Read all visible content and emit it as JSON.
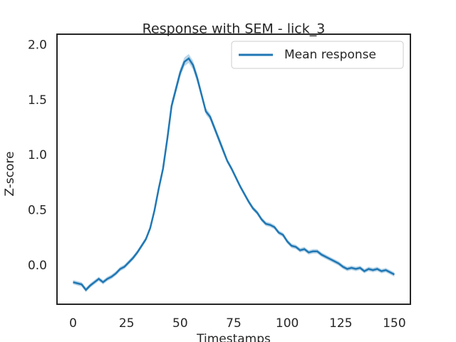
{
  "chart_data": {
    "type": "line",
    "title": "Response with SEM - lick_3",
    "xlabel": "Timestamps",
    "ylabel": "Z-score",
    "x": [
      0,
      2,
      4,
      6,
      8,
      10,
      12,
      14,
      16,
      18,
      20,
      22,
      24,
      26,
      28,
      30,
      32,
      34,
      36,
      38,
      40,
      42,
      44,
      46,
      48,
      50,
      52,
      54,
      56,
      58,
      60,
      62,
      64,
      66,
      68,
      70,
      72,
      74,
      76,
      78,
      80,
      82,
      84,
      86,
      88,
      90,
      92,
      94,
      96,
      98,
      100,
      102,
      104,
      106,
      108,
      110,
      112,
      114,
      116,
      118,
      120,
      122,
      124,
      126,
      128,
      130,
      132,
      134,
      136,
      138,
      140,
      142,
      144,
      146,
      148,
      150
    ],
    "series": [
      {
        "name": "Mean response",
        "color": "#1f77b4",
        "values": [
          -0.15,
          -0.16,
          -0.17,
          -0.22,
          -0.18,
          -0.15,
          -0.12,
          -0.15,
          -0.12,
          -0.1,
          -0.07,
          -0.03,
          -0.01,
          0.03,
          0.07,
          0.12,
          0.18,
          0.24,
          0.34,
          0.5,
          0.7,
          0.88,
          1.15,
          1.45,
          1.6,
          1.75,
          1.85,
          1.88,
          1.82,
          1.7,
          1.55,
          1.4,
          1.35,
          1.25,
          1.15,
          1.05,
          0.95,
          0.88,
          0.8,
          0.72,
          0.65,
          0.58,
          0.52,
          0.48,
          0.42,
          0.38,
          0.37,
          0.35,
          0.3,
          0.28,
          0.22,
          0.18,
          0.17,
          0.14,
          0.15,
          0.12,
          0.13,
          0.13,
          0.1,
          0.08,
          0.06,
          0.04,
          0.02,
          -0.01,
          -0.03,
          -0.02,
          -0.03,
          -0.02,
          -0.05,
          -0.03,
          -0.04,
          -0.03,
          -0.05,
          -0.04,
          -0.06,
          -0.08
        ],
        "sem": [
          0.02,
          0.02,
          0.02,
          0.02,
          0.02,
          0.02,
          0.02,
          0.02,
          0.02,
          0.02,
          0.02,
          0.02,
          0.02,
          0.02,
          0.02,
          0.02,
          0.02,
          0.02,
          0.02,
          0.02,
          0.02,
          0.02,
          0.03,
          0.04,
          0.04,
          0.04,
          0.04,
          0.04,
          0.04,
          0.04,
          0.03,
          0.03,
          0.03,
          0.03,
          0.03,
          0.03,
          0.02,
          0.02,
          0.02,
          0.02,
          0.02,
          0.02,
          0.02,
          0.02,
          0.02,
          0.02,
          0.02,
          0.02,
          0.02,
          0.02,
          0.02,
          0.02,
          0.02,
          0.02,
          0.02,
          0.02,
          0.02,
          0.02,
          0.02,
          0.02,
          0.02,
          0.02,
          0.02,
          0.02,
          0.02,
          0.02,
          0.02,
          0.02,
          0.02,
          0.02,
          0.02,
          0.02,
          0.02,
          0.02,
          0.02,
          0.02
        ]
      }
    ],
    "xlim": [
      -7.5,
      157.5
    ],
    "ylim": [
      -0.35,
      2.1
    ],
    "xticks": [
      0,
      25,
      50,
      75,
      100,
      125,
      150
    ],
    "yticks": [
      {
        "value": 0,
        "label": "0.0"
      },
      0.5,
      {
        "value": 1,
        "label": "1.0"
      },
      1.5,
      {
        "value": 2,
        "label": "2.0"
      }
    ],
    "legend": "upper right"
  }
}
